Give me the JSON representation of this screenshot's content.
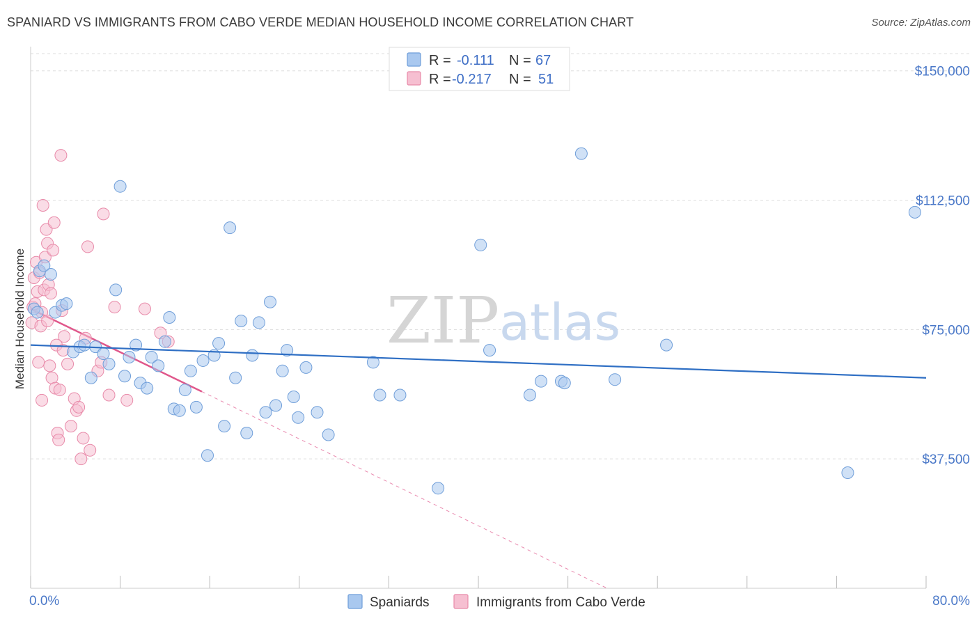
{
  "title": "SPANIARD VS IMMIGRANTS FROM CABO VERDE MEDIAN HOUSEHOLD INCOME CORRELATION CHART",
  "source": "Source: ZipAtlas.com",
  "watermark": {
    "zip": "ZIP",
    "atlas": "atlas"
  },
  "colors": {
    "blue_fill": "#a9c8ef",
    "blue_stroke": "#6f9ed9",
    "blue_line": "#2f6fc4",
    "pink_fill": "#f6bfd1",
    "pink_stroke": "#e88aa9",
    "pink_line": "#e0578b",
    "grid": "#dddddd",
    "label": "#4a78c8"
  },
  "legend": {
    "rows": [
      {
        "r_label": "R =",
        "r_value": "-0.111",
        "n_label": "N =",
        "n_value": "67"
      },
      {
        "r_label": "R =",
        "r_value": "-0.217",
        "n_label": "N =",
        "n_value": "51"
      }
    ],
    "bottom": [
      "Spaniards",
      "Immigrants from Cabo Verde"
    ]
  },
  "chart_data": {
    "type": "scatter",
    "title": "SPANIARD VS IMMIGRANTS FROM CABO VERDE MEDIAN HOUSEHOLD INCOME CORRELATION CHART",
    "xlabel": "",
    "ylabel": "Median Household Income",
    "xlim": [
      0,
      80
    ],
    "ylim": [
      0,
      157000
    ],
    "x_tick_labels": [
      "0.0%",
      "80.0%"
    ],
    "y_ticks": [
      37500,
      75000,
      112500,
      150000
    ],
    "y_tick_labels": [
      "$37,500",
      "$75,000",
      "$112,500",
      "$150,000"
    ],
    "grid": true,
    "legend_position": "top-center",
    "series": [
      {
        "name": "Spaniards",
        "r": -0.111,
        "n": 67,
        "trend": {
          "x": [
            0,
            80
          ],
          "y": [
            70500,
            61000
          ]
        },
        "points": [
          [
            0.3,
            81000
          ],
          [
            0.8,
            92000
          ],
          [
            1.2,
            93500
          ],
          [
            1.8,
            91000
          ],
          [
            2.2,
            80000
          ],
          [
            2.8,
            82000
          ],
          [
            3.2,
            82500
          ],
          [
            3.8,
            68500
          ],
          [
            4.4,
            70000
          ],
          [
            4.8,
            70500
          ],
          [
            5.4,
            61000
          ],
          [
            5.8,
            70000
          ],
          [
            6.5,
            68000
          ],
          [
            7.0,
            65000
          ],
          [
            7.6,
            86500
          ],
          [
            8.0,
            116500
          ],
          [
            8.4,
            61500
          ],
          [
            8.8,
            67000
          ],
          [
            9.4,
            70500
          ],
          [
            9.8,
            59500
          ],
          [
            10.4,
            58000
          ],
          [
            10.8,
            67000
          ],
          [
            11.4,
            64500
          ],
          [
            12.0,
            71500
          ],
          [
            12.4,
            78500
          ],
          [
            12.8,
            52000
          ],
          [
            13.3,
            51500
          ],
          [
            13.8,
            57500
          ],
          [
            14.3,
            63000
          ],
          [
            14.8,
            52500
          ],
          [
            15.4,
            66000
          ],
          [
            15.8,
            38500
          ],
          [
            16.4,
            67500
          ],
          [
            16.8,
            71000
          ],
          [
            17.3,
            47000
          ],
          [
            17.8,
            104500
          ],
          [
            18.3,
            61000
          ],
          [
            18.8,
            77500
          ],
          [
            19.3,
            45000
          ],
          [
            19.8,
            67500
          ],
          [
            20.4,
            77000
          ],
          [
            21.0,
            51000
          ],
          [
            21.4,
            83000
          ],
          [
            21.9,
            53000
          ],
          [
            22.5,
            63000
          ],
          [
            22.9,
            69000
          ],
          [
            23.5,
            55500
          ],
          [
            23.9,
            49500
          ],
          [
            24.6,
            64000
          ],
          [
            25.6,
            51000
          ],
          [
            26.6,
            44500
          ],
          [
            30.6,
            65500
          ],
          [
            31.2,
            56000
          ],
          [
            33.0,
            56000
          ],
          [
            36.4,
            29000
          ],
          [
            40.2,
            99500
          ],
          [
            41.0,
            69000
          ],
          [
            44.6,
            56000
          ],
          [
            45.6,
            60000
          ],
          [
            47.4,
            60000
          ],
          [
            47.7,
            59500
          ],
          [
            49.2,
            126000
          ],
          [
            52.2,
            60500
          ],
          [
            56.8,
            70500
          ],
          [
            73.0,
            33500
          ],
          [
            79.0,
            109000
          ],
          [
            0.6,
            80000
          ]
        ]
      },
      {
        "name": "Immigrants from Cabo Verde",
        "r": -0.217,
        "n": 51,
        "trend": {
          "x": [
            0,
            15.3
          ],
          "y": [
            81000,
            57000
          ]
        },
        "trend_extension": {
          "x": [
            15.3,
            51.5
          ],
          "y": [
            57000,
            0
          ]
        },
        "points": [
          [
            0.1,
            77000
          ],
          [
            0.2,
            81500
          ],
          [
            0.3,
            90000
          ],
          [
            0.4,
            82500
          ],
          [
            0.5,
            94500
          ],
          [
            0.6,
            86000
          ],
          [
            0.7,
            65500
          ],
          [
            0.8,
            91500
          ],
          [
            0.9,
            76000
          ],
          [
            1.0,
            54500
          ],
          [
            1.1,
            111000
          ],
          [
            1.2,
            86500
          ],
          [
            1.3,
            96000
          ],
          [
            1.4,
            104000
          ],
          [
            1.5,
            100000
          ],
          [
            1.6,
            88000
          ],
          [
            1.7,
            64500
          ],
          [
            1.8,
            85500
          ],
          [
            1.9,
            61000
          ],
          [
            2.0,
            98000
          ],
          [
            2.1,
            106000
          ],
          [
            2.2,
            58000
          ],
          [
            2.3,
            70500
          ],
          [
            2.4,
            45000
          ],
          [
            2.5,
            43000
          ],
          [
            2.6,
            57500
          ],
          [
            2.7,
            125500
          ],
          [
            2.8,
            80500
          ],
          [
            2.9,
            69000
          ],
          [
            3.0,
            73000
          ],
          [
            3.3,
            65000
          ],
          [
            3.6,
            47000
          ],
          [
            3.9,
            55000
          ],
          [
            4.1,
            51500
          ],
          [
            4.3,
            52500
          ],
          [
            4.5,
            37500
          ],
          [
            4.7,
            43500
          ],
          [
            4.9,
            72500
          ],
          [
            5.1,
            99000
          ],
          [
            5.3,
            40000
          ],
          [
            6.0,
            63000
          ],
          [
            6.3,
            65500
          ],
          [
            6.5,
            108500
          ],
          [
            7.0,
            56000
          ],
          [
            7.5,
            81500
          ],
          [
            8.6,
            54500
          ],
          [
            10.2,
            81000
          ],
          [
            11.6,
            74000
          ],
          [
            12.3,
            71500
          ],
          [
            1.0,
            80000
          ],
          [
            1.5,
            77500
          ]
        ]
      }
    ]
  }
}
